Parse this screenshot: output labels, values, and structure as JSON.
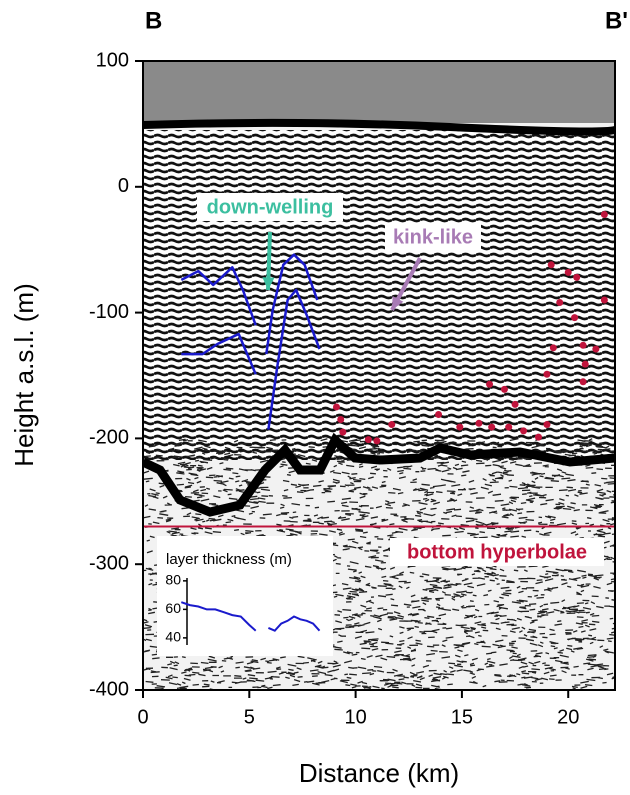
{
  "chart_data": [
    {
      "type": "radargram",
      "left_label": "B",
      "right_label": "B'",
      "xlabel": "Distance (km)",
      "ylabel": "Height a.s.l. (m)",
      "xlim": [
        0,
        22.2
      ],
      "ylim": [
        -400,
        100
      ],
      "xticks": [
        0,
        5,
        10,
        15,
        20
      ],
      "yticks": [
        -400,
        -300,
        -200,
        -100,
        0,
        100
      ],
      "series": [
        {
          "color": "#1a1acc",
          "x": [
            1.8,
            2.6,
            3.3,
            4.2,
            4.7,
            5.3
          ],
          "values": [
            -74,
            -67,
            -78,
            -64,
            -82,
            -110
          ]
        },
        {
          "color": "#1a1acc",
          "x": [
            1.8,
            2.8,
            3.5,
            4.5,
            4.9,
            5.3
          ],
          "values": [
            -133,
            -133,
            -125,
            -117,
            -133,
            -149
          ]
        },
        {
          "color": "#1a1acc",
          "x": [
            5.8,
            6.1,
            6.6,
            7.1,
            7.6,
            8.2
          ],
          "values": [
            -133,
            -98,
            -62,
            -54,
            -62,
            -90
          ]
        },
        {
          "color": "#1a1acc",
          "x": [
            5.9,
            6.3,
            6.8,
            7.2,
            7.7,
            8.3
          ],
          "values": [
            -193,
            -145,
            -90,
            -82,
            -102,
            -129
          ]
        }
      ],
      "points": {
        "color": "#c0143c",
        "x": [
          9.1,
          9.3,
          9.4,
          10.6,
          11.0,
          11.7,
          13.9,
          14.9,
          15.8,
          16.3,
          16.4,
          17.0,
          17.2,
          17.5,
          17.9,
          18.6,
          19.0,
          19.0,
          19.3,
          19.2,
          19.6,
          20.0,
          20.3,
          20.4,
          20.7,
          20.8,
          20.7,
          21.3,
          21.7,
          21.7
        ],
        "values": [
          -175,
          -185,
          -195,
          -201,
          -202,
          -189,
          -181,
          -191,
          -188,
          -157,
          -191,
          -161,
          -191,
          -173,
          -194,
          -199,
          -189,
          -149,
          -128,
          -62,
          -92,
          -68,
          -104,
          -72,
          -126,
          -141,
          -155,
          -129,
          -90,
          -22
        ]
      },
      "hline": {
        "value": -270,
        "color": "#c0143c"
      },
      "annotations": [
        {
          "text": "down-welling",
          "color": "#3cbfa0"
        },
        {
          "text": "kink-like",
          "color": "#a87bb5"
        },
        {
          "text": "bottom hyperbolae",
          "color": "#c0143c"
        }
      ]
    },
    {
      "type": "line",
      "title": "layer thickness (m)",
      "ylim": [
        35,
        82
      ],
      "yticks": [
        40,
        60,
        80
      ],
      "color": "#1a1acc",
      "x": [
        1.8,
        2.2,
        2.6,
        3.0,
        3.4,
        3.8,
        4.2,
        4.6,
        5.0,
        5.3,
        5.6,
        5.9,
        6.2,
        6.5,
        6.8,
        7.1,
        7.4,
        7.7,
        8.0,
        8.3
      ],
      "values": [
        65,
        63,
        62,
        60,
        60,
        58,
        56,
        55,
        49,
        45,
        null,
        47,
        45,
        50,
        52,
        55,
        53,
        52,
        50,
        45
      ]
    }
  ]
}
